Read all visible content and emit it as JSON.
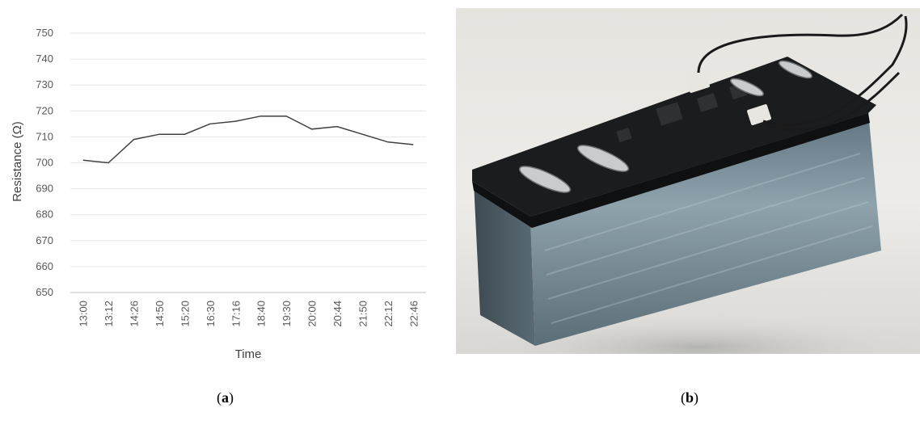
{
  "chart_data": {
    "type": "line",
    "categories": [
      "13:00",
      "13:12",
      "14:26",
      "14:50",
      "15:20",
      "16:30",
      "17:16",
      "18:40",
      "19:30",
      "20:00",
      "20:44",
      "21:50",
      "22:12",
      "22:46"
    ],
    "values": [
      701,
      700,
      709,
      711,
      711,
      715,
      716,
      718,
      718,
      713,
      714,
      711,
      708,
      707
    ],
    "xlabel": "Time",
    "ylabel": "Resistance (Ω)",
    "ylim": [
      650,
      750
    ],
    "yticks": [
      650,
      660,
      670,
      680,
      690,
      700,
      710,
      720,
      730,
      740,
      750
    ],
    "grid": true,
    "line_color": "#404040",
    "grid_color": "#e6e6e6"
  },
  "captions": {
    "a_open": "(",
    "a_letter": "a",
    "a_close": ")",
    "b_open": "(",
    "b_letter": "b",
    "b_close": ")"
  },
  "photo": {
    "subject": "sensor-device-photo",
    "colors": {
      "pcb": "#1b1c1e",
      "block": "#6f8592",
      "background": "#e9e8e4"
    }
  }
}
